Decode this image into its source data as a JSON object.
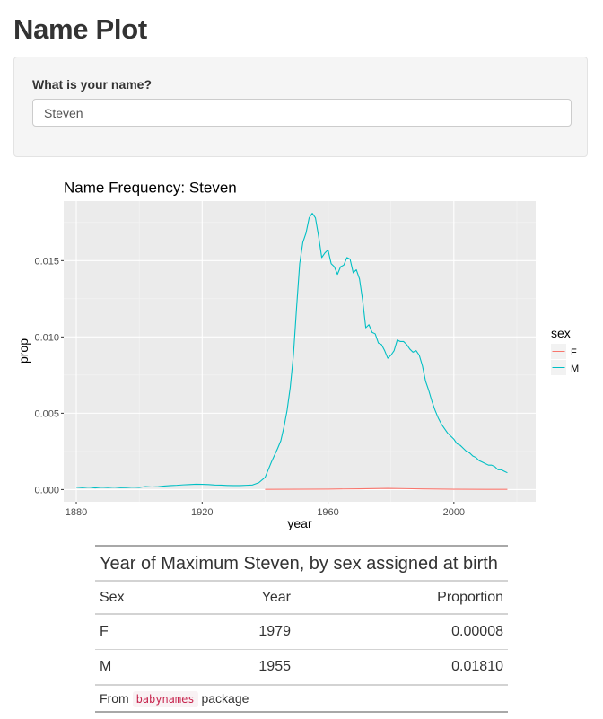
{
  "page": {
    "title": "Name Plot"
  },
  "form": {
    "label": "What is your name?",
    "value": "Steven"
  },
  "chart_data": {
    "type": "line",
    "title": "Name Frequency: Steven",
    "xlabel": "year",
    "ylabel": "prop",
    "xlim": [
      1876,
      2026
    ],
    "ylim": [
      -0.0008,
      0.0189
    ],
    "x_ticks": [
      1880,
      1920,
      1960,
      2000
    ],
    "x_tick_labels": [
      "1880",
      "1920",
      "1960",
      "2000"
    ],
    "y_ticks": [
      0,
      0.005,
      0.01,
      0.015
    ],
    "y_tick_labels": [
      "0.000",
      "0.005",
      "0.010",
      "0.015"
    ],
    "grid": true,
    "legend": {
      "title": "sex",
      "position": "right"
    },
    "series": [
      {
        "name": "F",
        "color": "#F8766D",
        "points": [
          [
            1940,
            1e-05
          ],
          [
            1950,
            2e-05
          ],
          [
            1960,
            3e-05
          ],
          [
            1970,
            5e-05
          ],
          [
            1979,
            8e-05
          ],
          [
            1985,
            6e-05
          ],
          [
            1990,
            4e-05
          ],
          [
            2000,
            2e-05
          ],
          [
            2010,
            1e-05
          ],
          [
            2017,
            1e-05
          ]
        ]
      },
      {
        "name": "M",
        "color": "#00BFC4",
        "points": [
          [
            1880,
            0.00015
          ],
          [
            1882,
            0.00012
          ],
          [
            1884,
            0.00016
          ],
          [
            1886,
            0.00011
          ],
          [
            1888,
            0.00015
          ],
          [
            1890,
            0.00013
          ],
          [
            1892,
            0.00016
          ],
          [
            1894,
            0.00012
          ],
          [
            1896,
            0.00013
          ],
          [
            1898,
            0.00016
          ],
          [
            1900,
            0.00014
          ],
          [
            1902,
            0.0002
          ],
          [
            1904,
            0.00017
          ],
          [
            1906,
            0.00019
          ],
          [
            1908,
            0.00023
          ],
          [
            1910,
            0.00026
          ],
          [
            1912,
            0.00028
          ],
          [
            1914,
            0.00031
          ],
          [
            1916,
            0.00033
          ],
          [
            1918,
            0.00035
          ],
          [
            1920,
            0.00034
          ],
          [
            1922,
            0.00033
          ],
          [
            1924,
            0.0003
          ],
          [
            1926,
            0.00029
          ],
          [
            1928,
            0.00027
          ],
          [
            1930,
            0.00026
          ],
          [
            1932,
            0.00026
          ],
          [
            1934,
            0.00028
          ],
          [
            1936,
            0.0003
          ],
          [
            1938,
            0.00045
          ],
          [
            1940,
            0.0008
          ],
          [
            1942,
            0.0018
          ],
          [
            1944,
            0.0027
          ],
          [
            1945,
            0.0032
          ],
          [
            1946,
            0.0041
          ],
          [
            1947,
            0.0052
          ],
          [
            1948,
            0.0067
          ],
          [
            1949,
            0.0088
          ],
          [
            1950,
            0.0119
          ],
          [
            1951,
            0.0148
          ],
          [
            1952,
            0.0162
          ],
          [
            1953,
            0.0168
          ],
          [
            1954,
            0.0178
          ],
          [
            1955,
            0.0181
          ],
          [
            1956,
            0.0178
          ],
          [
            1957,
            0.0166
          ],
          [
            1958,
            0.0152
          ],
          [
            1959,
            0.0155
          ],
          [
            1960,
            0.0157
          ],
          [
            1961,
            0.0148
          ],
          [
            1962,
            0.0146
          ],
          [
            1963,
            0.0141
          ],
          [
            1964,
            0.0146
          ],
          [
            1965,
            0.0147
          ],
          [
            1966,
            0.0152
          ],
          [
            1967,
            0.0151
          ],
          [
            1968,
            0.0142
          ],
          [
            1969,
            0.0144
          ],
          [
            1970,
            0.0138
          ],
          [
            1971,
            0.0124
          ],
          [
            1972,
            0.0106
          ],
          [
            1973,
            0.0108
          ],
          [
            1974,
            0.0103
          ],
          [
            1975,
            0.0102
          ],
          [
            1976,
            0.0096
          ],
          [
            1977,
            0.0095
          ],
          [
            1978,
            0.0091
          ],
          [
            1979,
            0.0086
          ],
          [
            1980,
            0.0088
          ],
          [
            1981,
            0.0091
          ],
          [
            1982,
            0.0098
          ],
          [
            1983,
            0.0097
          ],
          [
            1984,
            0.0097
          ],
          [
            1985,
            0.0095
          ],
          [
            1986,
            0.0092
          ],
          [
            1987,
            0.009
          ],
          [
            1988,
            0.0091
          ],
          [
            1989,
            0.0088
          ],
          [
            1990,
            0.0081
          ],
          [
            1991,
            0.0071
          ],
          [
            1992,
            0.0065
          ],
          [
            1993,
            0.0058
          ],
          [
            1994,
            0.0052
          ],
          [
            1995,
            0.0047
          ],
          [
            1996,
            0.0043
          ],
          [
            1997,
            0.004
          ],
          [
            1998,
            0.0037
          ],
          [
            1999,
            0.0035
          ],
          [
            2000,
            0.0033
          ],
          [
            2001,
            0.003
          ],
          [
            2002,
            0.0029
          ],
          [
            2003,
            0.0027
          ],
          [
            2004,
            0.0025
          ],
          [
            2005,
            0.0024
          ],
          [
            2006,
            0.0022
          ],
          [
            2007,
            0.0021
          ],
          [
            2008,
            0.0019
          ],
          [
            2009,
            0.0018
          ],
          [
            2010,
            0.0017
          ],
          [
            2011,
            0.0016
          ],
          [
            2012,
            0.0016
          ],
          [
            2013,
            0.0015
          ],
          [
            2014,
            0.0013
          ],
          [
            2015,
            0.0013
          ],
          [
            2016,
            0.0012
          ],
          [
            2017,
            0.0011
          ]
        ]
      }
    ]
  },
  "table": {
    "title": "Year of Maximum Steven, by sex assigned at birth",
    "columns": [
      "Sex",
      "Year",
      "Proportion"
    ],
    "rows": [
      {
        "sex": "F",
        "year": "1979",
        "prop": "0.00008"
      },
      {
        "sex": "M",
        "year": "1955",
        "prop": "0.01810"
      }
    ],
    "footer": {
      "prefix": "From",
      "code": "babynames",
      "suffix": "package"
    }
  }
}
